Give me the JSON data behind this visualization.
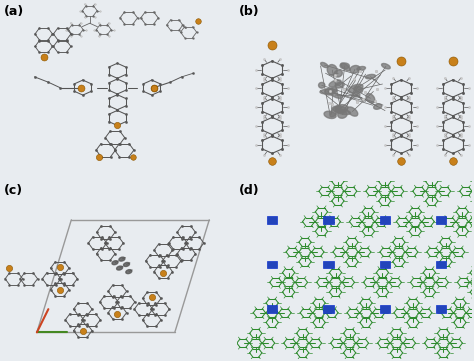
{
  "figure_width": 4.74,
  "figure_height": 3.61,
  "dpi": 100,
  "bg_color": "#e8ecf0",
  "panel_bg_a": "#e8eef4",
  "panel_bg_b": "#e8eef4",
  "panel_bg_c": "#e8eef4",
  "panel_bg_d": "#eef0ee",
  "labels": [
    "(a)",
    "(b)",
    "(c)",
    "(d)"
  ],
  "label_fontsize": 9,
  "label_color": "black",
  "mol_dark": "#555555",
  "mol_mid": "#888888",
  "mol_light": "#bbbbbb",
  "mol_gold": "#c8801a",
  "mol_white": "#dddddd",
  "mol_green": "#2e8b2e",
  "mol_blue": "#2244bb",
  "cell_color_h": "#888888",
  "cell_color_v": "#888888",
  "cell_color_red": "#cc4422",
  "cell_color_green": "#448822"
}
